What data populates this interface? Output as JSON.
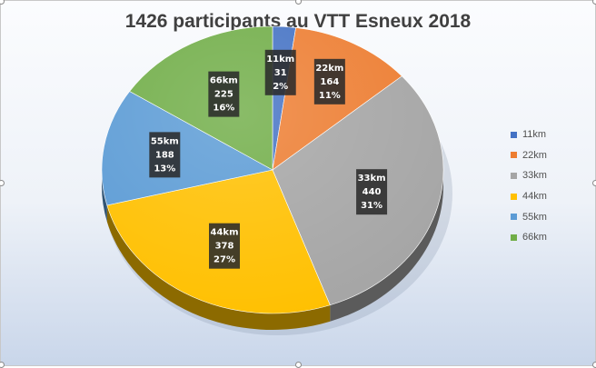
{
  "chart_data": {
    "type": "pie",
    "title": "1426 participants au VTT Esneux 2018",
    "categories": [
      "11km",
      "22km",
      "33km",
      "44km",
      "55km",
      "66km"
    ],
    "values": [
      31,
      164,
      440,
      378,
      188,
      225
    ],
    "percent_labels": [
      "2%",
      "11%",
      "31%",
      "27%",
      "13%",
      "16%"
    ],
    "colors": [
      "#4472c4",
      "#ed7d31",
      "#a5a5a5",
      "#ffc000",
      "#5b9bd5",
      "#70ad47"
    ],
    "legend_position": "right",
    "style": "3d"
  }
}
